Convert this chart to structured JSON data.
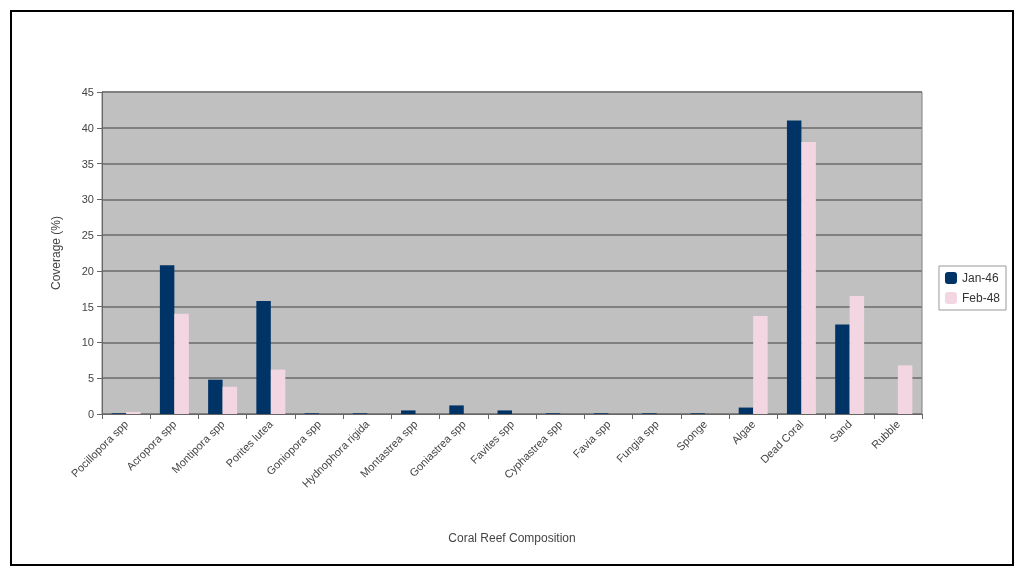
{
  "chart_data": {
    "type": "bar",
    "xlabel": "Coral Reef Composition",
    "ylabel": "Coverage (%)",
    "categories": [
      "Pocillopora spp",
      "Acropora spp",
      "Montipora spp",
      "Porites lutea",
      "Goniopora spp",
      "Hydnophora rigida",
      "Montastrea spp",
      "Goniastrea spp",
      "Favites spp",
      "Cyphastrea spp",
      "Favia spp",
      "Fungia spp",
      "Sponge",
      "Algae",
      "Dead Coral",
      "Sand",
      "Rubble"
    ],
    "series": [
      {
        "name": "Jan-46",
        "color": "#003366",
        "values": [
          0.1,
          20.8,
          4.8,
          15.8,
          0.1,
          0.1,
          0.5,
          1.2,
          0.5,
          0.1,
          0.1,
          0.1,
          0.1,
          0.9,
          41,
          12.5,
          0
        ]
      },
      {
        "name": "Feb-48",
        "color": "#f2d6e2",
        "values": [
          0.3,
          14,
          3.8,
          6.2,
          null,
          0,
          0,
          0,
          0,
          0,
          0,
          0,
          0,
          13.7,
          38,
          16.5,
          6.8
        ]
      }
    ],
    "ylim": [
      0,
      45
    ],
    "yticks": [
      0,
      5,
      10,
      15,
      20,
      25,
      30,
      35,
      40,
      45
    ],
    "grid": "y",
    "legend": "right"
  }
}
